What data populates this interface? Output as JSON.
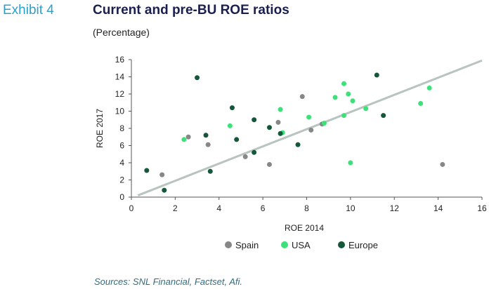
{
  "header": {
    "exhibit": "Exhibit 4",
    "title": "Current and pre-BU ROE ratios",
    "subtitle": "(Percentage)"
  },
  "footer": {
    "source": "Sources: SNL Financial, Factset, Afi."
  },
  "colors": {
    "Spain": "#878787",
    "USA": "#3ee07a",
    "Europe": "#15573a",
    "trendline": "#b8c4c0",
    "axis": "#555555"
  },
  "chart_data": {
    "type": "scatter",
    "title": "Current and pre-BU ROE ratios",
    "subtitle": "(Percentage)",
    "xlabel": "ROE 2014",
    "ylabel": "ROE 2017",
    "xlim": [
      0,
      16
    ],
    "ylim": [
      0,
      16
    ],
    "xticks": [
      0,
      2,
      4,
      6,
      8,
      10,
      12,
      14,
      16
    ],
    "yticks": [
      0,
      2,
      4,
      6,
      8,
      10,
      12,
      14,
      16
    ],
    "grid": false,
    "legend": "bottom",
    "trendline": {
      "x": [
        0.3,
        16
      ],
      "y": [
        0.2,
        15.9
      ]
    },
    "series": [
      {
        "name": "Spain",
        "points": [
          [
            1.4,
            2.6
          ],
          [
            2.6,
            7.0
          ],
          [
            3.5,
            6.1
          ],
          [
            5.2,
            4.7
          ],
          [
            6.3,
            3.8
          ],
          [
            6.7,
            8.7
          ],
          [
            7.8,
            11.7
          ],
          [
            8.2,
            7.8
          ],
          [
            8.7,
            8.5
          ],
          [
            14.2,
            3.8
          ]
        ]
      },
      {
        "name": "USA",
        "points": [
          [
            2.4,
            6.7
          ],
          [
            4.5,
            8.3
          ],
          [
            6.8,
            10.2
          ],
          [
            6.9,
            7.5
          ],
          [
            8.1,
            9.3
          ],
          [
            8.8,
            8.6
          ],
          [
            9.3,
            11.6
          ],
          [
            9.7,
            13.2
          ],
          [
            9.7,
            9.5
          ],
          [
            9.9,
            12.0
          ],
          [
            10.1,
            11.2
          ],
          [
            10.0,
            4.0
          ],
          [
            10.7,
            10.3
          ],
          [
            13.2,
            10.9
          ],
          [
            13.6,
            12.7
          ]
        ]
      },
      {
        "name": "Europe",
        "points": [
          [
            0.7,
            3.1
          ],
          [
            1.5,
            0.8
          ],
          [
            3.0,
            13.9
          ],
          [
            3.4,
            7.2
          ],
          [
            3.6,
            3.0
          ],
          [
            4.6,
            10.4
          ],
          [
            4.8,
            6.7
          ],
          [
            5.6,
            9.0
          ],
          [
            5.6,
            5.2
          ],
          [
            6.3,
            8.1
          ],
          [
            6.8,
            7.4
          ],
          [
            7.6,
            6.1
          ],
          [
            11.2,
            14.2
          ],
          [
            11.5,
            9.5
          ]
        ]
      }
    ]
  }
}
